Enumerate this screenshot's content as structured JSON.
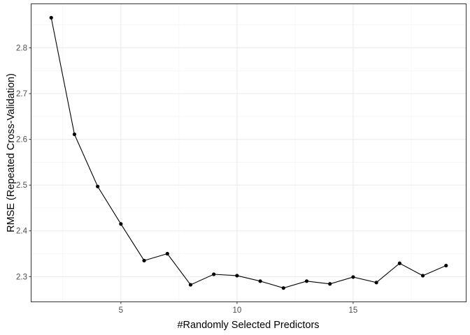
{
  "chart_data": {
    "type": "line",
    "title": "",
    "xlabel": "#Randomly Selected Predictors",
    "ylabel": "RMSE (Repeated Cross-Validation)",
    "xlim": [
      1.15,
      19.85
    ],
    "ylim": [
      2.2455,
      2.8955
    ],
    "x_ticks": [
      5,
      10,
      15
    ],
    "x_tick_labels": [
      "5",
      "10",
      "15"
    ],
    "y_ticks": [
      2.3,
      2.4,
      2.5,
      2.6,
      2.7,
      2.8
    ],
    "y_tick_labels": [
      "2.3",
      "2.4",
      "2.5",
      "2.6",
      "2.7",
      "2.8"
    ],
    "grid": true,
    "legend": "none",
    "series": [
      {
        "x": [
          2,
          3,
          4,
          5,
          6,
          7,
          8,
          9,
          10,
          11,
          12,
          13,
          14,
          15,
          16,
          17,
          18,
          19
        ],
        "values": [
          2.866,
          2.611,
          2.497,
          2.415,
          2.335,
          2.35,
          2.282,
          2.305,
          2.302,
          2.29,
          2.275,
          2.29,
          2.284,
          2.299,
          2.287,
          2.329,
          2.302,
          2.324
        ],
        "color": "#000000"
      }
    ]
  }
}
